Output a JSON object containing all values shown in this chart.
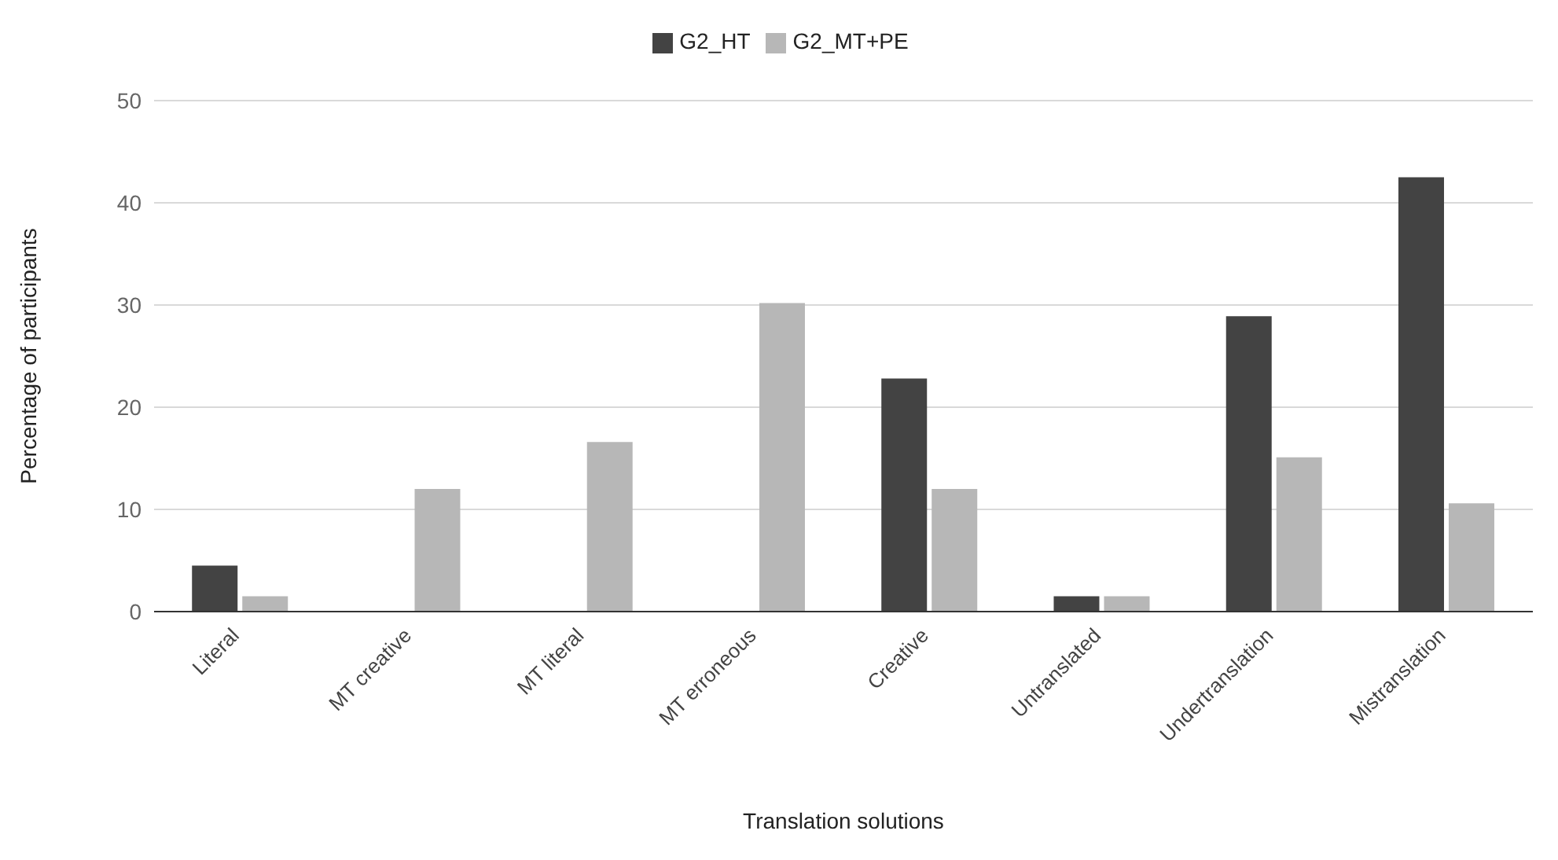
{
  "chart_data": {
    "type": "bar",
    "xlabel": "Translation solutions",
    "ylabel": "Percentage of participants",
    "categories": [
      "Literal",
      "MT creative",
      "MT literal",
      "MT erroneous",
      "Creative",
      "Untranslated",
      "Undertranslation",
      "Mistranslation"
    ],
    "series": [
      {
        "name": "G2_HT",
        "color": "#434343",
        "values": [
          4.5,
          0,
          0,
          0,
          22.8,
          1.5,
          28.9,
          42.5
        ]
      },
      {
        "name": "G2_MT+PE",
        "color": "#b7b7b7",
        "values": [
          1.5,
          12,
          16.6,
          30.2,
          12,
          1.5,
          15.1,
          10.6
        ]
      }
    ],
    "ylim": [
      0,
      50
    ],
    "yticks": [
      0,
      10,
      20,
      30,
      40,
      50
    ],
    "grid": "y",
    "legend": "top"
  }
}
